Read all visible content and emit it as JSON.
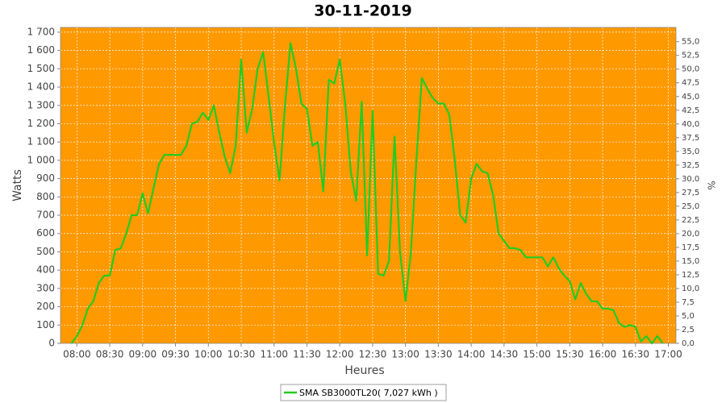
{
  "chart_data": {
    "type": "line",
    "title": "30-11-2019",
    "xlabel": "Heures",
    "ylabel": "Watts",
    "y2label": "%",
    "x": [
      475,
      480,
      485,
      490,
      495,
      500,
      505,
      510,
      515,
      520,
      525,
      530,
      535,
      540,
      545,
      550,
      555,
      560,
      565,
      570,
      575,
      580,
      585,
      590,
      595,
      600,
      605,
      610,
      615,
      620,
      625,
      630,
      635,
      640,
      645,
      650,
      655,
      660,
      665,
      670,
      675,
      680,
      685,
      690,
      695,
      700,
      705,
      710,
      715,
      720,
      725,
      730,
      735,
      740,
      745,
      750,
      755,
      760,
      765,
      770,
      775,
      780,
      785,
      790,
      795,
      800,
      805,
      810,
      815,
      820,
      825,
      830,
      835,
      840,
      845,
      850,
      855,
      860,
      865,
      870,
      875,
      880,
      885,
      890,
      895,
      900,
      905,
      910,
      915,
      920,
      925,
      930,
      935,
      940,
      945,
      950,
      955,
      960,
      965,
      970,
      975,
      980,
      985,
      990,
      995,
      1000,
      1005,
      1010,
      1015
    ],
    "series": [
      {
        "name": "SMA SB3000TL20( 7,027 kWh )",
        "color": "#22cc22",
        "values": [
          0,
          40,
          100,
          190,
          230,
          330,
          370,
          370,
          510,
          520,
          600,
          700,
          700,
          820,
          710,
          850,
          980,
          1030,
          1030,
          1030,
          1030,
          1080,
          1200,
          1210,
          1260,
          1220,
          1300,
          1150,
          1020,
          930,
          1080,
          1550,
          1150,
          1280,
          1500,
          1590,
          1350,
          1100,
          890,
          1300,
          1640,
          1500,
          1310,
          1280,
          1080,
          1100,
          830,
          1440,
          1420,
          1550,
          1310,
          940,
          780,
          1320,
          480,
          1270,
          380,
          370,
          450,
          1130,
          500,
          230,
          500,
          1000,
          1450,
          1390,
          1340,
          1310,
          1310,
          1250,
          1000,
          700,
          660,
          900,
          980,
          940,
          930,
          810,
          600,
          560,
          520,
          520,
          510,
          470,
          470,
          470,
          470,
          420,
          470,
          410,
          370,
          340,
          240,
          330,
          270,
          230,
          230,
          190,
          190,
          180,
          110,
          90,
          100,
          90,
          10,
          40,
          0,
          40,
          0
        ]
      }
    ],
    "xlim": [
      465,
      1027
    ],
    "xticks": [
      {
        "value": 480,
        "label": "08:00"
      },
      {
        "value": 510,
        "label": "08:30"
      },
      {
        "value": 540,
        "label": "09:00"
      },
      {
        "value": 570,
        "label": "09:30"
      },
      {
        "value": 600,
        "label": "10:00"
      },
      {
        "value": 630,
        "label": "10:30"
      },
      {
        "value": 660,
        "label": "11:00"
      },
      {
        "value": 690,
        "label": "11:30"
      },
      {
        "value": 720,
        "label": "12:00"
      },
      {
        "value": 750,
        "label": "12:30"
      },
      {
        "value": 780,
        "label": "13:00"
      },
      {
        "value": 810,
        "label": "13:30"
      },
      {
        "value": 840,
        "label": "14:00"
      },
      {
        "value": 870,
        "label": "14:30"
      },
      {
        "value": 900,
        "label": "15:00"
      },
      {
        "value": 930,
        "label": "15:30"
      },
      {
        "value": 960,
        "label": "16:00"
      },
      {
        "value": 990,
        "label": "16:30"
      },
      {
        "value": 1020,
        "label": "17:00"
      }
    ],
    "ylim": [
      0,
      1726
    ],
    "yticks": [
      0,
      100,
      200,
      300,
      400,
      500,
      600,
      700,
      800,
      900,
      {
        "value": 1000,
        "label": "1 000"
      },
      {
        "value": 1100,
        "label": "1 100"
      },
      {
        "value": 1200,
        "label": "1 200"
      },
      {
        "value": 1300,
        "label": "1 300"
      },
      {
        "value": 1400,
        "label": "1 400"
      },
      {
        "value": 1500,
        "label": "1 500"
      },
      {
        "value": 1600,
        "label": "1 600"
      },
      {
        "value": 1700,
        "label": "1 700"
      }
    ],
    "y2lim": [
      0,
      57.6
    ],
    "y2ticks": [
      {
        "value": 0,
        "label": "0,0"
      },
      {
        "value": 2.5,
        "label": "2,5"
      },
      {
        "value": 5,
        "label": "5,0"
      },
      {
        "value": 7.5,
        "label": "7,5"
      },
      {
        "value": 10,
        "label": "10,0"
      },
      {
        "value": 12.5,
        "label": "12,5"
      },
      {
        "value": 15,
        "label": "15,0"
      },
      {
        "value": 17.5,
        "label": "17,5"
      },
      {
        "value": 20,
        "label": "20,0"
      },
      {
        "value": 22.5,
        "label": "22,5"
      },
      {
        "value": 25,
        "label": "25,0"
      },
      {
        "value": 27.5,
        "label": "27,5"
      },
      {
        "value": 30,
        "label": "30,0"
      },
      {
        "value": 32.5,
        "label": "32,5"
      },
      {
        "value": 35,
        "label": "35,0"
      },
      {
        "value": 37.5,
        "label": "37,5"
      },
      {
        "value": 40,
        "label": "40,0"
      },
      {
        "value": 42.5,
        "label": "42,5"
      },
      {
        "value": 45,
        "label": "45,0"
      },
      {
        "value": 47.5,
        "label": "47,5"
      },
      {
        "value": 50,
        "label": "50,0"
      },
      {
        "value": 52.5,
        "label": "52,5"
      },
      {
        "value": 55,
        "label": "55,0"
      }
    ],
    "grid": true,
    "plot_background": "#ff9900",
    "legend": "bottom"
  }
}
